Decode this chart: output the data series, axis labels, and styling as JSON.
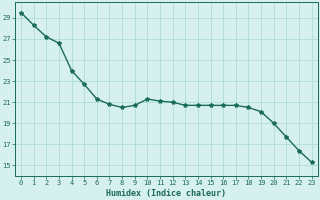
{
  "x": [
    0,
    1,
    2,
    3,
    4,
    5,
    6,
    7,
    8,
    9,
    10,
    11,
    12,
    13,
    14,
    15,
    16,
    17,
    18,
    19,
    20,
    21,
    22,
    23
  ],
  "y": [
    29.5,
    28.3,
    27.2,
    26.6,
    24.0,
    22.7,
    21.3,
    20.8,
    20.5,
    20.7,
    21.3,
    21.1,
    21.0,
    20.7,
    20.7,
    20.7,
    20.7,
    20.7,
    20.5,
    20.1,
    19.0,
    17.7,
    16.4,
    15.3
  ],
  "line_color": "#1a6b5a",
  "marker": "*",
  "marker_size": 3,
  "bg_color": "#d6f0ee",
  "grid_color": "#a8d8d4",
  "grid_color_minor": "#c4e8e4",
  "xlabel": "Humidex (Indice chaleur)",
  "ylabel_ticks": [
    15,
    17,
    19,
    21,
    23,
    25,
    27,
    29
  ],
  "xlim": [
    -0.5,
    23.5
  ],
  "ylim": [
    14.0,
    30.5
  ],
  "tick_fontsize": 5.0,
  "xlabel_fontsize": 6.0
}
